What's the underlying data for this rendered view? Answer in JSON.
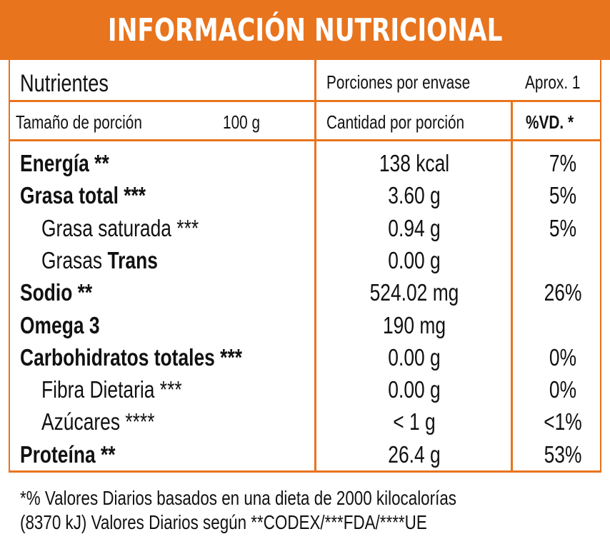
{
  "title": "INFORMACIÓN NUTRICIONAL",
  "header": {
    "nutrients_label": "Nutrientes",
    "servings_label": "Porciones por envase",
    "servings_value": "Aprox. 1",
    "serving_size_label": "Tamaño de porción",
    "serving_size_value": "100 g",
    "amount_label": "Cantidad por porción",
    "dv_label": "%VD. *"
  },
  "rows": [
    {
      "label_a": "Energía",
      "label_b": " **",
      "amount": "138 kcal",
      "dv": "7%",
      "weight": "bold",
      "indent": false
    },
    {
      "label_a": "Grasa total",
      "label_b": " ***",
      "amount": "3.60 g",
      "dv": "5%",
      "weight": "bold",
      "indent": false
    },
    {
      "label_a": "Grasa saturada",
      "label_b": " ***",
      "amount": "0.94 g",
      "dv": "5%",
      "weight": "normal",
      "indent": true
    },
    {
      "label_a": "Grasas ",
      "label_b": "Trans",
      "amount": "0.00 g",
      "dv": "",
      "weight": "normal",
      "indent": true
    },
    {
      "label_a": "Sodio",
      "label_b": " **",
      "amount": "524.02 mg",
      "dv": "26%",
      "weight": "bold",
      "indent": false
    },
    {
      "label_a": "Omega 3",
      "label_b": "",
      "amount": "190 mg",
      "dv": "",
      "weight": "bold",
      "indent": false
    },
    {
      "label_a": "Carbohidratos totales",
      "label_b": " ***",
      "amount": "0.00 g",
      "dv": "0%",
      "weight": "bold",
      "indent": false
    },
    {
      "label_a": "Fibra Dietaria",
      "label_b": " ***",
      "amount": "0.00 g",
      "dv": "0%",
      "weight": "normal",
      "indent": true
    },
    {
      "label_a": "Azúcares",
      "label_b": " ****",
      "amount": "< 1 g",
      "dv": "<1%",
      "weight": "normal",
      "indent": true
    },
    {
      "label_a": "Proteína",
      "label_b": " **",
      "amount": "26.4 g",
      "dv": "53%",
      "weight": "bold",
      "indent": false
    }
  ],
  "footnote": {
    "line1": "*% Valores Diarios basados en una dieta de 2000 kilocalorías",
    "line2": "(8370 kJ) Valores Diarios según **CODEX/***FDA/****UE"
  },
  "colors": {
    "accent": "#e8741e",
    "text": "#111111"
  }
}
